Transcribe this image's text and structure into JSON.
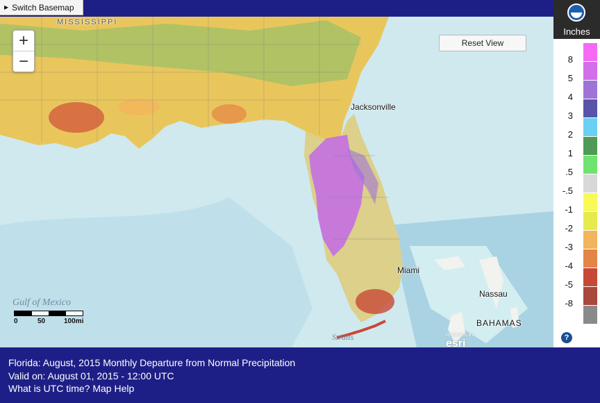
{
  "toolbar": {
    "basemap_label": "Switch Basemap",
    "reset_label": "Reset View"
  },
  "zoom": {
    "in": "+",
    "out": "−"
  },
  "map": {
    "places": [
      "Jacksonville",
      "Miami",
      "Nassau",
      "BAHAMAS",
      "MISSISSIPPI"
    ],
    "water": [
      "Gulf of Mexico",
      "Straits"
    ],
    "scale": {
      "units": [
        "0",
        "50",
        "100mi"
      ]
    },
    "attribution": {
      "powered": "POWERED BY",
      "logo": "esri"
    }
  },
  "legend": {
    "logo": "NOAA",
    "unit_label": "Inches",
    "values": [
      "8",
      "5",
      "4",
      "3",
      "2",
      "1",
      ".5",
      "-.5",
      "-1",
      "-2",
      "-3",
      "-4",
      "-5",
      "-8"
    ],
    "colors": [
      "#f56af4",
      "#d26ee8",
      "#a073d9",
      "#5954a8",
      "#6ad0f2",
      "#4f9a55",
      "#6fe36f",
      "#d8d8d8",
      "#f8fa57",
      "#e5ea4d",
      "#f3b45b",
      "#e48547",
      "#c84836",
      "#a9493c",
      "#8a8a8a"
    ],
    "help": "?"
  },
  "footer": {
    "title": "Florida: August, 2015 Monthly Departure from Normal Precipitation",
    "valid": "Valid on: August 01, 2015 - 12:00 UTC",
    "links": "What is UTC time? Map Help"
  }
}
